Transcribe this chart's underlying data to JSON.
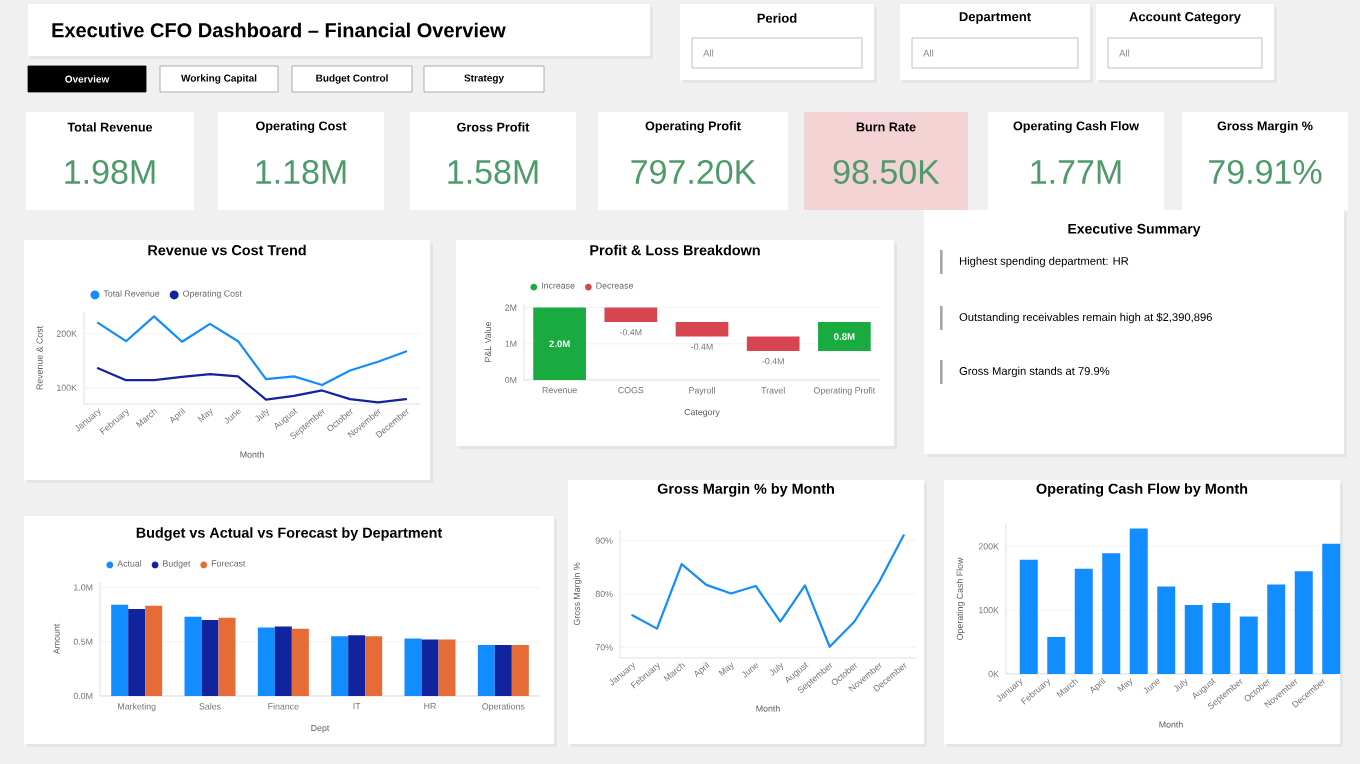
{
  "chart_data": [
    {
      "type": "other",
      "title": "Executive CFO Dashboard – Financial Overview",
      "annotations": [
        "Overview",
        "Working Capital",
        "Budget Control",
        "Strategy"
      ]
    },
    {
      "type": "other",
      "categories": [
        "Period",
        "Department",
        "Account Category"
      ],
      "annotations": [
        "All",
        "All",
        "All"
      ]
    },
    {
      "type": "other",
      "categories": [
        "Total Revenue",
        "Operating Cost",
        "Gross Profit",
        "Operating Profit",
        "Burn Rate",
        "Operating Cash Flow",
        "Gross Margin %"
      ],
      "value_labels": [
        "1.98M",
        "1.18M",
        "1.58M",
        "797.20K",
        "98.50K",
        "1.77M",
        "79.91%"
      ],
      "colors": [
        "#ffffff",
        "#ffffff",
        "#ffffff",
        "#ffffff",
        "#f3d3d3",
        "#ffffff",
        "#ffffff"
      ]
    },
    {
      "type": "other",
      "title": "Executive Summary",
      "annotations": [
        "Highest spending department: HR",
        "Outstanding receivables remain high at $2,390,896",
        "Gross Margin stands at 79.9%"
      ]
    },
    {
      "type": "line",
      "title": "Revenue vs Cost Trend",
      "xlabel": "Month",
      "ylabel": "Revenue & Cost",
      "legend": "top left",
      "grid": "y",
      "categories": [
        "January",
        "February",
        "March",
        "April",
        "May",
        "June",
        "July",
        "August",
        "September",
        "October",
        "November",
        "December"
      ],
      "ylim": [
        70,
        240
      ],
      "yticks": [
        {
          "value": 100,
          "label": "100K"
        },
        {
          "value": 200,
          "label": "200K"
        }
      ],
      "series": [
        {
          "name": "Total Revenue",
          "color": "#118dff",
          "values": [
            220,
            186,
            232,
            185,
            218,
            186,
            116,
            121,
            105,
            132,
            148,
            167
          ]
        },
        {
          "name": "Operating Cost",
          "color": "#12239e",
          "values": [
            136,
            114,
            114,
            120,
            125,
            121,
            78,
            85,
            95,
            79,
            73,
            79
          ]
        }
      ]
    },
    {
      "type": "bar",
      "title": "Profit & Loss Breakdown",
      "xlabel": "Category",
      "ylabel": "P&L Value",
      "legend": "top left",
      "grid": "y",
      "categories": [
        "Revenue",
        "COGS",
        "Payroll",
        "Travel",
        "Operating Profit"
      ],
      "ylim": [
        0,
        2.1
      ],
      "yticks": [
        {
          "value": 0,
          "label": "0M"
        },
        {
          "value": 1,
          "label": "1M"
        },
        {
          "value": 2,
          "label": "2M"
        }
      ],
      "series": [
        {
          "name": "Increase",
          "color": "#1aab40",
          "values": [
            2.0,
            null,
            null,
            null,
            0.8
          ],
          "base": [
            0,
            null,
            null,
            null,
            0.8
          ],
          "value_labels": [
            "2.0M",
            null,
            null,
            null,
            "0.8M"
          ]
        },
        {
          "name": "Decrease",
          "color": "#d64550",
          "values": [
            null,
            -0.4,
            -0.4,
            -0.4,
            null
          ],
          "base": [
            null,
            2.0,
            1.6,
            1.2,
            null
          ],
          "value_labels": [
            null,
            "-0.4M",
            "-0.4M",
            "-0.4M",
            null
          ]
        }
      ]
    },
    {
      "type": "bar",
      "title": "Budget vs Actual vs Forecast by Department",
      "xlabel": "Dept",
      "ylabel": "Amount",
      "legend": "top left",
      "grid": "y",
      "categories": [
        "Marketing",
        "Sales",
        "Finance",
        "IT",
        "HR",
        "Operations"
      ],
      "ylim": [
        0,
        1.05
      ],
      "yticks": [
        {
          "value": 0,
          "label": "0.0M"
        },
        {
          "value": 0.5,
          "label": "0.5M"
        },
        {
          "value": 1.0,
          "label": "1.0M"
        }
      ],
      "series": [
        {
          "name": "Actual",
          "color": "#118dff",
          "values": [
            0.84,
            0.73,
            0.63,
            0.55,
            0.53,
            0.47
          ]
        },
        {
          "name": "Budget",
          "color": "#12239e",
          "values": [
            0.8,
            0.7,
            0.64,
            0.56,
            0.52,
            0.47
          ]
        },
        {
          "name": "Forecast",
          "color": "#e66c37",
          "values": [
            0.83,
            0.72,
            0.62,
            0.55,
            0.52,
            0.47
          ]
        }
      ]
    },
    {
      "type": "line",
      "title": "Gross Margin % by Month",
      "xlabel": "Month",
      "ylabel": "Gross Margin %",
      "grid": "y",
      "color": "#118dff",
      "categories": [
        "January",
        "February",
        "March",
        "April",
        "May",
        "June",
        "July",
        "August",
        "September",
        "October",
        "November",
        "December"
      ],
      "ylim": [
        68,
        92
      ],
      "yticks": [
        {
          "value": 70,
          "label": "70%"
        },
        {
          "value": 80,
          "label": "80%"
        },
        {
          "value": 90,
          "label": "90%"
        }
      ],
      "values": [
        76.0,
        73.5,
        85.6,
        81.7,
        80.1,
        81.5,
        74.8,
        81.6,
        70.1,
        74.8,
        82.2,
        91.0
      ]
    },
    {
      "type": "bar",
      "title": "Operating Cash Flow by Month",
      "xlabel": "Month",
      "ylabel": "Operating Cash Flow",
      "grid": "y",
      "color": "#118dff",
      "categories": [
        "January",
        "February",
        "March",
        "April",
        "May",
        "June",
        "July",
        "August",
        "September",
        "October",
        "November",
        "December"
      ],
      "ylim": [
        0,
        235
      ],
      "yticks": [
        {
          "value": 0,
          "label": "0K"
        },
        {
          "value": 100,
          "label": "100K"
        },
        {
          "value": 200,
          "label": "200K"
        }
      ],
      "values": [
        179,
        58,
        165,
        189,
        228,
        137,
        108,
        111,
        90,
        140,
        161,
        204
      ]
    }
  ]
}
